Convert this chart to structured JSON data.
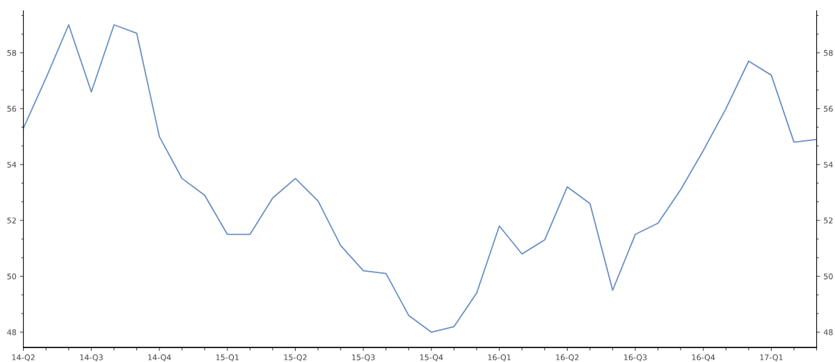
{
  "chart_data": {
    "type": "line",
    "categories": [
      "14-Q2",
      null,
      null,
      "14-Q3",
      null,
      null,
      "14-Q4",
      null,
      null,
      "15-Q1",
      null,
      null,
      "15-Q2",
      null,
      null,
      "15-Q3",
      null,
      null,
      "15-Q4",
      null,
      null,
      "16-Q1",
      null,
      null,
      "16-Q2",
      null,
      null,
      "16-Q3",
      null,
      null,
      "16-Q4",
      null,
      null,
      "17-Q1",
      null,
      null
    ],
    "series": [
      {
        "color": "#6a8fc4",
        "values": [
          55.3,
          57.1,
          59.0,
          56.6,
          59.0,
          58.7,
          55.0,
          53.5,
          52.9,
          51.5,
          51.5,
          52.8,
          53.5,
          52.7,
          51.1,
          50.2,
          50.1,
          48.6,
          48.0,
          48.2,
          49.4,
          51.8,
          50.8,
          51.3,
          53.2,
          52.6,
          49.5,
          51.5,
          51.9,
          53.1,
          54.5,
          56.0,
          57.7,
          57.2,
          54.8,
          54.9
        ]
      }
    ],
    "ylim": [
      47.45,
      59.5
    ],
    "yticks": [
      48,
      50,
      52,
      54,
      56,
      58
    ],
    "y2lim": [
      47.45,
      59.5
    ],
    "y2ticks": [
      48,
      50,
      52,
      54,
      56,
      58
    ],
    "grid": false,
    "marker": "none",
    "line_style": "solid",
    "legend": false
  }
}
